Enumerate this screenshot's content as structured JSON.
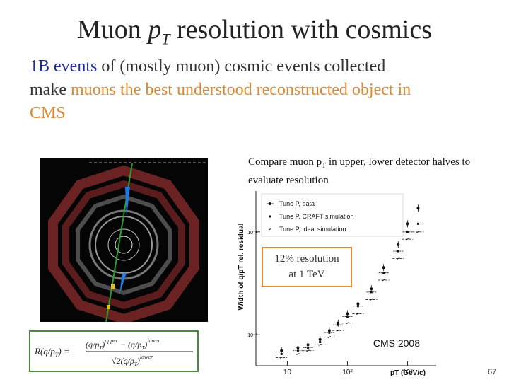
{
  "title": {
    "prefix": "Muon ",
    "p": "p",
    "sub": "T",
    "suffix": " resolution with cosmics"
  },
  "intro": {
    "part1": "1B events",
    "part2": " of (mostly muon) cosmic events collected make ",
    "part3": "muons the best understood reconstructed object in CMS"
  },
  "compare": {
    "pre": "Compare muon p",
    "sub": "T",
    "post": " in upper, lower detector halves to evaluate resolution"
  },
  "callout": {
    "line1": "12% resolution",
    "line2": "at 1 TeV"
  },
  "formula": {
    "lhs": "R(q/p",
    "lhs_sub": "T",
    "lhs_end": ") = ",
    "num_a": "(q/p",
    "num_sub": "T",
    "num_sup": "upper",
    "num_b": " − (q/p",
    "num_sub2": "T",
    "num_sup2": "lower",
    "den_a": "√2(q/p",
    "den_sub": "T",
    "den_sup": "lower"
  },
  "plot": {
    "ylabel": "Width of q/pT rel. residual",
    "xlabel": "pT (GeV/c)",
    "watermark": "CMS 2008",
    "legend": [
      "Tune P, data",
      "Tune P, CRAFT simulation",
      "Tune P, ideal simulation"
    ],
    "x_ticks": [
      "10",
      "10²",
      "10³"
    ],
    "y_ticks": [
      "10⁻¹",
      "10⁻²"
    ]
  },
  "chart_data": {
    "type": "scatter",
    "title": "",
    "xlabel": "pT (GeV/c)",
    "ylabel": "Width of q/pT rel. residual",
    "log_x": true,
    "log_y": true,
    "xlim": [
      3,
      3000
    ],
    "ylim": [
      0.005,
      0.25
    ],
    "series": [
      {
        "name": "Tune P, data",
        "x": [
          8,
          15,
          22,
          35,
          50,
          70,
          100,
          150,
          250,
          400,
          700,
          1000,
          1500
        ],
        "y": [
          0.007,
          0.0075,
          0.008,
          0.009,
          0.011,
          0.013,
          0.016,
          0.02,
          0.028,
          0.045,
          0.075,
          0.12,
          0.17
        ]
      },
      {
        "name": "Tune P, CRAFT simulation",
        "x": [
          8,
          15,
          22,
          35,
          50,
          70,
          100,
          150,
          250,
          400,
          700,
          1000,
          1500
        ],
        "y": [
          0.0065,
          0.007,
          0.0075,
          0.0085,
          0.0105,
          0.0125,
          0.015,
          0.019,
          0.026,
          0.04,
          0.065,
          0.1,
          0.12
        ]
      },
      {
        "name": "Tune P, ideal simulation",
        "x": [
          8,
          15,
          22,
          35,
          50,
          70,
          100,
          150,
          250,
          400,
          700,
          1000,
          1500
        ],
        "y": [
          0.006,
          0.0065,
          0.007,
          0.008,
          0.0095,
          0.011,
          0.013,
          0.016,
          0.022,
          0.034,
          0.055,
          0.085,
          0.1
        ]
      }
    ]
  },
  "page_number": "67",
  "colors": {
    "intro_blue": "#1d2e9a",
    "accent_orange": "#e0892c",
    "formula_border": "#4a8a3a"
  }
}
